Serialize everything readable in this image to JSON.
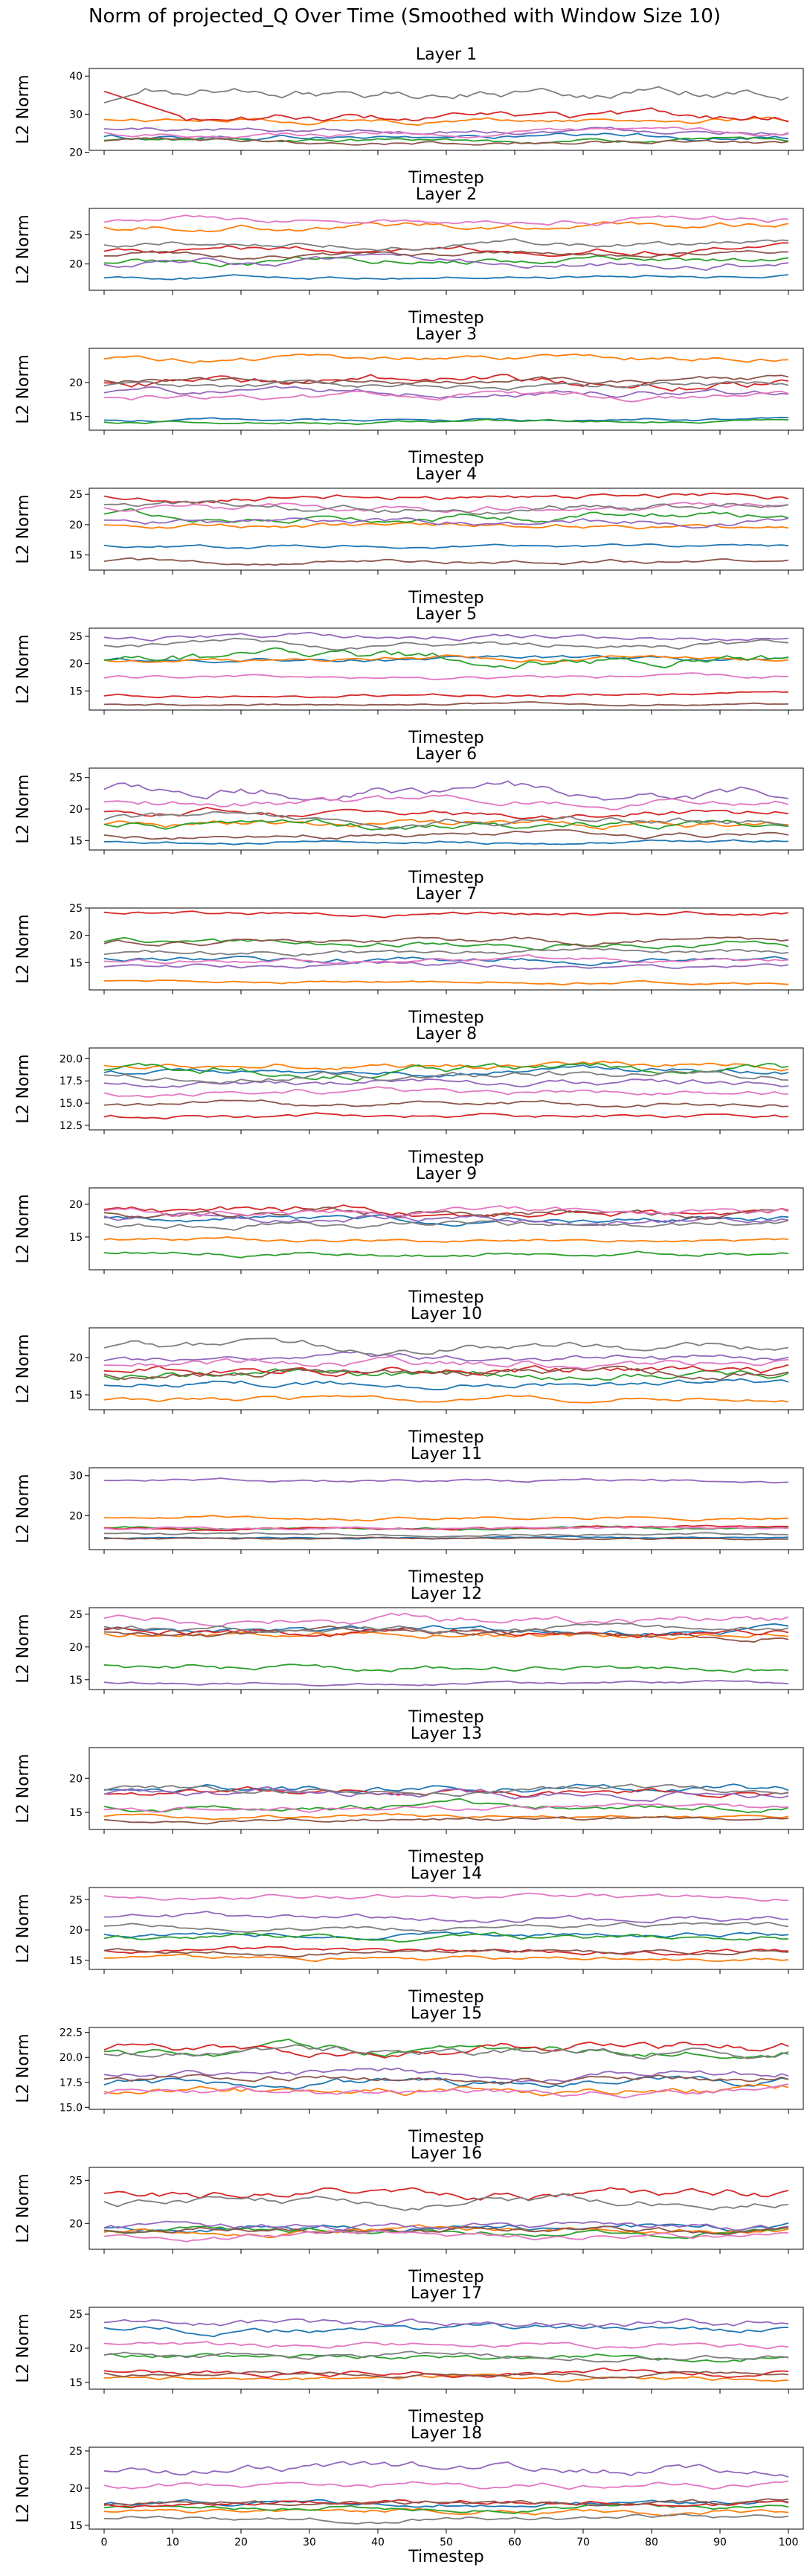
{
  "figure": {
    "title": "Norm of projected_Q Over Time (Smoothed with Window Size 10)"
  },
  "chart_data": {
    "type": "line",
    "x_label": "Timestep",
    "y_label": "L2 Norm",
    "x_range": [
      0,
      100
    ],
    "x_ticks": [
      "0",
      "10",
      "20",
      "30",
      "40",
      "50",
      "60",
      "70",
      "80",
      "90",
      "100"
    ],
    "series_colors": [
      "#1f77b4",
      "#ff7f0e",
      "#2ca02c",
      "#d62728",
      "#9467bd",
      "#8c564b",
      "#e377c2",
      "#7f7f7f"
    ],
    "grid": false,
    "legend": "none",
    "panels": [
      {
        "title": "Layer 1",
        "ylim": [
          20.5,
          42
        ],
        "yticks": [
          "20",
          "30",
          "40"
        ],
        "levels": [
          24,
          28.5,
          23,
          29,
          26,
          22.8,
          25,
          36
        ],
        "amp": [
          1,
          1,
          0.8,
          1.5,
          1,
          0.8,
          1,
          2
        ],
        "special": "layer1"
      },
      {
        "title": "Layer 2",
        "ylim": [
          15.5,
          29.5
        ],
        "yticks": [
          "20",
          "25"
        ],
        "levels": [
          17.8,
          26.6,
          20.5,
          22.5,
          20.2,
          21.6,
          27.4,
          23.5
        ],
        "amp": [
          0.4,
          0.8,
          0.8,
          0.8,
          0.8,
          0.6,
          0.7,
          0.7
        ]
      },
      {
        "title": "Layer 3",
        "ylim": [
          13,
          25
        ],
        "yticks": [
          "15",
          "20"
        ],
        "levels": [
          14.5,
          23.5,
          14.2,
          20,
          18.5,
          20.3,
          17.8,
          19.5
        ],
        "amp": [
          0.3,
          0.6,
          0.3,
          1,
          0.7,
          0.6,
          0.7,
          0.6
        ]
      },
      {
        "title": "Layer 4",
        "ylim": [
          12.5,
          26
        ],
        "yticks": [
          "15",
          "20",
          "25"
        ],
        "levels": [
          16.5,
          19.8,
          21.5,
          24.5,
          20.5,
          13.8,
          22.5,
          23
        ],
        "amp": [
          0.4,
          0.6,
          0.9,
          0.7,
          0.8,
          0.5,
          0.8,
          0.9
        ]
      },
      {
        "title": "Layer 5",
        "ylim": [
          11.5,
          26.5
        ],
        "yticks": [
          "15",
          "20",
          "25"
        ],
        "levels": [
          20.8,
          20.8,
          21,
          14.2,
          25,
          12.6,
          17.5,
          23.5
        ],
        "amp": [
          0.6,
          0.6,
          1.3,
          0.4,
          0.7,
          0.3,
          0.5,
          0.8
        ]
      },
      {
        "title": "Layer 6",
        "ylim": [
          13.5,
          26.5
        ],
        "yticks": [
          "15",
          "20",
          "25"
        ],
        "levels": [
          14.8,
          17.5,
          17.5,
          19.5,
          23,
          15.8,
          21,
          18.2
        ],
        "amp": [
          0.4,
          0.8,
          0.9,
          0.9,
          1.3,
          0.6,
          0.9,
          0.9
        ]
      },
      {
        "title": "Layer 7",
        "ylim": [
          10,
          25
        ],
        "yticks": [
          "15",
          "20",
          "25"
        ],
        "levels": [
          15.5,
          11.5,
          18.5,
          24,
          14.5,
          18.8,
          15.5,
          16.8
        ],
        "amp": [
          0.7,
          0.4,
          0.8,
          0.5,
          0.6,
          0.7,
          0.6,
          0.7
        ]
      },
      {
        "title": "Layer 8",
        "ylim": [
          12,
          21.2
        ],
        "yticks": [
          "12.5",
          "15.0",
          "17.5",
          "20.0"
        ],
        "levels": [
          18.5,
          19.3,
          18.8,
          13.5,
          17.3,
          14.8,
          16.2,
          18.2
        ],
        "amp": [
          0.5,
          0.5,
          0.7,
          0.4,
          0.5,
          0.4,
          0.5,
          0.6
        ]
      },
      {
        "title": "Layer 9",
        "ylim": [
          10,
          22.5
        ],
        "yticks": [
          "15",
          "20"
        ],
        "levels": [
          17.8,
          14.5,
          12.5,
          19,
          18,
          18.5,
          18.8,
          16.8
        ],
        "amp": [
          0.7,
          0.4,
          0.5,
          0.9,
          0.8,
          0.8,
          0.8,
          0.7
        ]
      },
      {
        "title": "Layer 10",
        "ylim": [
          13,
          24
        ],
        "yticks": [
          "15",
          "20"
        ],
        "levels": [
          16.5,
          14.5,
          17.8,
          18.5,
          19.8,
          18,
          19.2,
          21.5
        ],
        "amp": [
          0.6,
          0.5,
          0.8,
          0.9,
          0.7,
          0.8,
          0.8,
          0.8
        ]
      },
      {
        "title": "Layer 11",
        "ylim": [
          11.5,
          32
        ],
        "yticks": [
          "20",
          "30"
        ],
        "levels": [
          14.5,
          19.5,
          16.8,
          17,
          28.8,
          14.2,
          16.8,
          15.5
        ],
        "amp": [
          0.3,
          0.6,
          0.5,
          0.5,
          0.6,
          0.3,
          0.5,
          0.5
        ]
      },
      {
        "title": "Layer 12",
        "ylim": [
          13.5,
          26
        ],
        "yticks": [
          "15",
          "20",
          "25"
        ],
        "levels": [
          22.5,
          21.8,
          17,
          22.3,
          14.5,
          22,
          24,
          22.8
        ],
        "amp": [
          0.7,
          0.7,
          0.7,
          0.8,
          0.3,
          0.7,
          0.9,
          0.7
        ]
      },
      {
        "title": "Layer 13",
        "ylim": [
          12.5,
          24.5
        ],
        "yticks": [
          "15",
          "20"
        ],
        "levels": [
          18.5,
          14.5,
          16,
          17.8,
          17.8,
          14,
          15.5,
          18.3
        ],
        "amp": [
          0.8,
          0.4,
          0.7,
          0.7,
          0.8,
          0.4,
          0.6,
          0.7
        ]
      },
      {
        "title": "Layer 14",
        "ylim": [
          13.5,
          27
        ],
        "yticks": [
          "15",
          "20",
          "25"
        ],
        "levels": [
          19.2,
          15.3,
          18.5,
          16.5,
          22,
          16.5,
          25.5,
          20.5
        ],
        "amp": [
          0.6,
          0.5,
          0.7,
          0.6,
          0.7,
          0.5,
          0.6,
          0.6
        ]
      },
      {
        "title": "Layer 15",
        "ylim": [
          14.8,
          23
        ],
        "yticks": [
          "15.0",
          "17.5",
          "20.0",
          "22.5"
        ],
        "levels": [
          17.5,
          16.8,
          20.8,
          21,
          18.5,
          18,
          16.5,
          20.5
        ],
        "amp": [
          0.6,
          0.6,
          0.6,
          0.7,
          0.6,
          0.5,
          0.5,
          0.6
        ]
      },
      {
        "title": "Layer 16",
        "ylim": [
          17,
          26.5
        ],
        "yticks": [
          "20",
          "25"
        ],
        "levels": [
          19.5,
          19,
          19.2,
          23.5,
          19.5,
          19.2,
          18.5,
          22.5
        ],
        "amp": [
          0.6,
          0.5,
          0.5,
          0.8,
          0.6,
          0.5,
          0.5,
          0.7
        ]
      },
      {
        "title": "Layer 17",
        "ylim": [
          14,
          26
        ],
        "yticks": [
          "15",
          "20",
          "25"
        ],
        "levels": [
          22.8,
          15.5,
          18.8,
          16.5,
          23.5,
          16.2,
          20.5,
          18.8
        ],
        "amp": [
          0.7,
          0.5,
          0.6,
          0.6,
          0.8,
          0.5,
          0.6,
          0.6
        ]
      },
      {
        "title": "Layer 18",
        "ylim": [
          14.5,
          25.5
        ],
        "yticks": [
          "15",
          "20",
          "25"
        ],
        "levels": [
          18,
          17,
          17.5,
          18,
          22.5,
          17.8,
          20.5,
          16
        ],
        "amp": [
          0.5,
          0.5,
          0.5,
          0.5,
          0.9,
          0.5,
          0.6,
          0.5
        ]
      }
    ]
  }
}
